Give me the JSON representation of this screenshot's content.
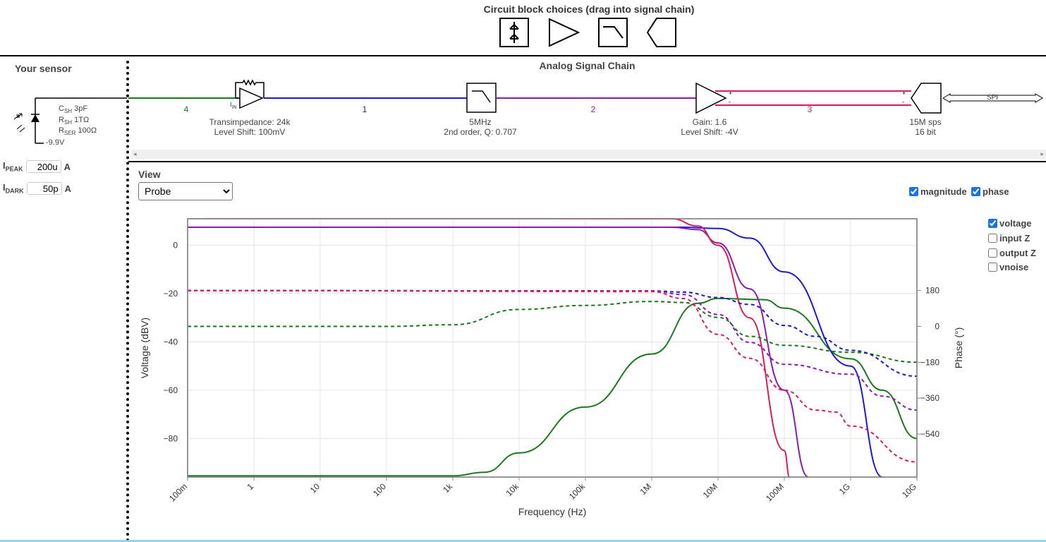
{
  "header": {
    "title": "Circuit block choices (drag into signal chain)"
  },
  "block_choices": [
    {
      "name": "photodiode-block"
    },
    {
      "name": "amplifier-block"
    },
    {
      "name": "filter-block"
    },
    {
      "name": "adc-block"
    }
  ],
  "sensor": {
    "title": "Your sensor",
    "csh": "3pF",
    "rsh": "1TΩ",
    "rser": "100Ω",
    "bias": "-9.9V",
    "ipeak_label": "I",
    "ipeak_sub": "PEAK",
    "ipeak_value": "200u",
    "ipeak_unit": "A",
    "idark_label": "I",
    "idark_sub": "DARK",
    "idark_value": "50p",
    "idark_unit": "A"
  },
  "chain": {
    "title": "Analog Signal Chain",
    "nets": [
      {
        "label": "4",
        "color": "#1a7a1a"
      },
      {
        "label": "1",
        "color": "#1a1acc"
      },
      {
        "label": "2",
        "color": "#8a1ab0"
      },
      {
        "label": "3",
        "color": "#d81b60"
      }
    ],
    "tia": {
      "line1": "Transimpedance: 24k",
      "line2": "Level Shift: 100mV",
      "iin": "I",
      "iin_sub": "IN"
    },
    "filter": {
      "line1": "5MHz",
      "line2": "2nd order, Q: 0.707"
    },
    "gain": {
      "line1": "Gain: 1.6",
      "line2": "Level Shift: -4V"
    },
    "adc": {
      "line1": "15M sps",
      "line2": "16 bit"
    },
    "spi": "SPI"
  },
  "view": {
    "label": "View",
    "selected": "Probe",
    "magnitude_label": "magnitude",
    "phase_label": "phase",
    "options": [
      {
        "label": "voltage",
        "checked": true
      },
      {
        "label": "input Z",
        "checked": false
      },
      {
        "label": "output Z",
        "checked": false
      },
      {
        "label": "vnoise",
        "checked": false
      }
    ]
  },
  "chart_data": {
    "type": "line",
    "xlabel": "Frequency (Hz)",
    "ylabel": "Voltage (dBV)",
    "y2label": "Phase (°)",
    "xscale": "log",
    "xlim": [
      0.1,
      10000000000
    ],
    "ylim": [
      -96,
      11
    ],
    "y2lim": [
      -756,
      540
    ],
    "x_ticks": [
      "100m",
      "1",
      "10",
      "100",
      "1k",
      "10k",
      "100k",
      "1M",
      "10M",
      "100M",
      "1G",
      "10G"
    ],
    "y_ticks": [
      0,
      -20,
      -40,
      -60,
      -80
    ],
    "y2_ticks": [
      180,
      0,
      -180,
      -360,
      -540
    ],
    "grid": true,
    "series": [
      {
        "color": "#1a7a1a",
        "style": "solid",
        "axis": "magnitude",
        "points": [
          [
            0.1,
            -95.5
          ],
          [
            1000,
            -95.5
          ],
          [
            3000,
            -94
          ],
          [
            10000,
            -86
          ],
          [
            100000,
            -67
          ],
          [
            1000000,
            -45
          ],
          [
            5000000,
            -24
          ],
          [
            10000000,
            -22
          ],
          [
            50000000,
            -22.5
          ],
          [
            100000000,
            -26
          ],
          [
            1000000000,
            -47
          ],
          [
            3000000000,
            -60
          ],
          [
            10000000000,
            -80
          ]
        ]
      },
      {
        "color": "#1a1acc",
        "style": "solid",
        "axis": "magnitude",
        "points": [
          [
            0.1,
            7.5
          ],
          [
            3000000,
            7.5
          ],
          [
            10000000,
            7
          ],
          [
            30000000,
            3
          ],
          [
            100000000,
            -11
          ],
          [
            1000000000,
            -50
          ],
          [
            3000000000,
            -96
          ]
        ]
      },
      {
        "color": "#8a1ab0",
        "style": "solid",
        "axis": "magnitude",
        "points": [
          [
            0.1,
            7.5
          ],
          [
            2000000,
            7.5
          ],
          [
            5000000,
            6.5
          ],
          [
            10000000,
            1
          ],
          [
            30000000,
            -18
          ],
          [
            100000000,
            -60
          ],
          [
            230000000,
            -96
          ]
        ]
      },
      {
        "color": "#d81b60",
        "style": "solid",
        "axis": "magnitude",
        "points": [
          [
            0.1,
            11.5
          ],
          [
            2000000,
            11
          ],
          [
            5000000,
            8
          ],
          [
            10000000,
            0
          ],
          [
            30000000,
            -30
          ],
          [
            100000000,
            -85
          ],
          [
            120000000,
            -96
          ]
        ]
      },
      {
        "color": "#1a7a1a",
        "style": "dashed",
        "axis": "phase",
        "points": [
          [
            0.1,
            0
          ],
          [
            100,
            0
          ],
          [
            1000,
            8
          ],
          [
            10000,
            85
          ],
          [
            100000,
            105
          ],
          [
            1000000,
            125
          ],
          [
            3000000,
            120
          ],
          [
            10000000,
            45
          ],
          [
            30000000,
            -50
          ],
          [
            100000000,
            -95
          ],
          [
            1000000000,
            -130
          ],
          [
            10000000000,
            -180
          ]
        ]
      },
      {
        "color": "#1a1acc",
        "style": "dashed",
        "axis": "phase",
        "points": [
          [
            0.1,
            180
          ],
          [
            1000000,
            178
          ],
          [
            3000000,
            172
          ],
          [
            10000000,
            145
          ],
          [
            30000000,
            110
          ],
          [
            100000000,
            5
          ],
          [
            300000000,
            -50
          ],
          [
            1000000000,
            -120
          ],
          [
            10000000000,
            -250
          ]
        ]
      },
      {
        "color": "#8a1ab0",
        "style": "dashed",
        "axis": "phase",
        "points": [
          [
            0.1,
            180
          ],
          [
            1000000,
            178
          ],
          [
            3000000,
            160
          ],
          [
            10000000,
            60
          ],
          [
            30000000,
            -80
          ],
          [
            100000000,
            -190
          ],
          [
            1000000000,
            -240
          ],
          [
            3000000000,
            -350
          ],
          [
            10000000000,
            -420
          ]
        ]
      },
      {
        "color": "#d81b60",
        "style": "dashed",
        "axis": "phase",
        "points": [
          [
            0.1,
            180
          ],
          [
            1000000,
            175
          ],
          [
            3000000,
            140
          ],
          [
            10000000,
            -40
          ],
          [
            30000000,
            -160
          ],
          [
            100000000,
            -320
          ],
          [
            300000000,
            -420
          ],
          [
            600000000,
            -430
          ],
          [
            1000000000,
            -500
          ],
          [
            10000000000,
            -680
          ]
        ]
      }
    ]
  }
}
